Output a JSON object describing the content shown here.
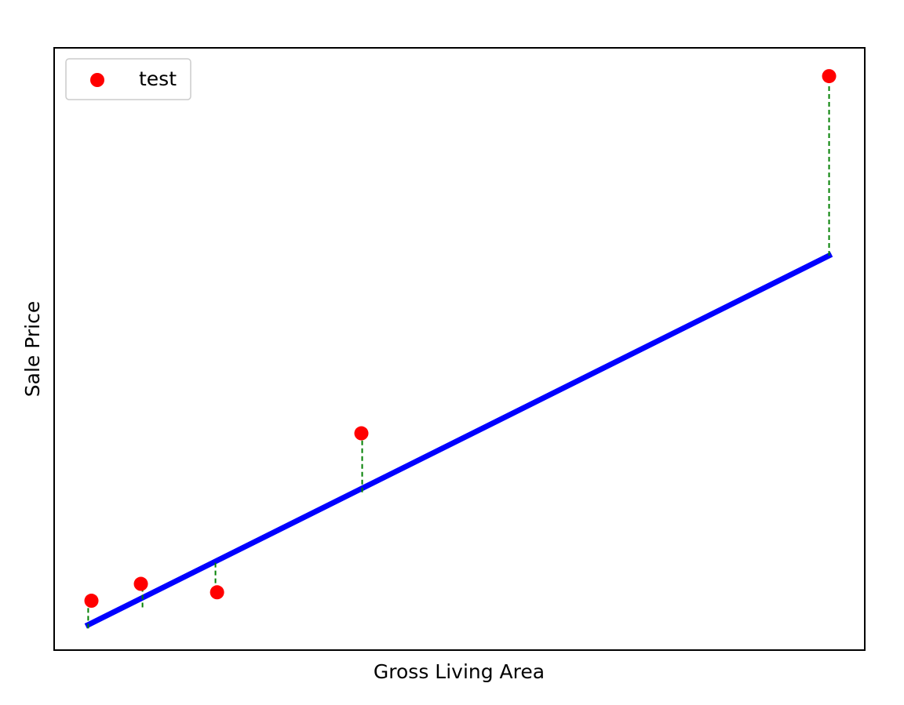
{
  "chart_data": {
    "type": "scatter",
    "title": "",
    "xlabel": "Gross Living Area",
    "ylabel": "Sale Price",
    "x_ticks_visible": false,
    "y_ticks_visible": false,
    "grid": false,
    "legend": {
      "placement": "top-left",
      "entries": [
        {
          "label": "test",
          "marker": "circle",
          "color": "#ff0000"
        }
      ]
    },
    "xlim": [
      0,
      100
    ],
    "ylim": [
      0,
      100
    ],
    "series": [
      {
        "name": "test",
        "kind": "scatter",
        "color": "#ff0000",
        "points": [
          {
            "x": 4.6,
            "y": 8.2
          },
          {
            "x": 10.7,
            "y": 11.0
          },
          {
            "x": 20.1,
            "y": 9.6
          },
          {
            "x": 37.9,
            "y": 36.0
          },
          {
            "x": 95.6,
            "y": 95.3
          }
        ]
      },
      {
        "kind": "regression-line",
        "color": "#0000ff",
        "points": [
          {
            "x": 4.2,
            "y": 4.2
          },
          {
            "x": 95.6,
            "y": 65.5
          }
        ]
      },
      {
        "kind": "residuals",
        "color": "#008000",
        "style": "dashed-arrow",
        "segments": [
          {
            "x": 4.2,
            "y_from": 3.6,
            "y_to": 8.2
          },
          {
            "x": 10.9,
            "y_from": 7.1,
            "y_to": 11.0
          },
          {
            "x": 19.9,
            "y_from": 14.5,
            "y_to": 9.6
          },
          {
            "x": 38.0,
            "y_from": 26.2,
            "y_to": 36.0
          },
          {
            "x": 95.6,
            "y_from": 65.5,
            "y_to": 95.3
          }
        ]
      }
    ]
  }
}
